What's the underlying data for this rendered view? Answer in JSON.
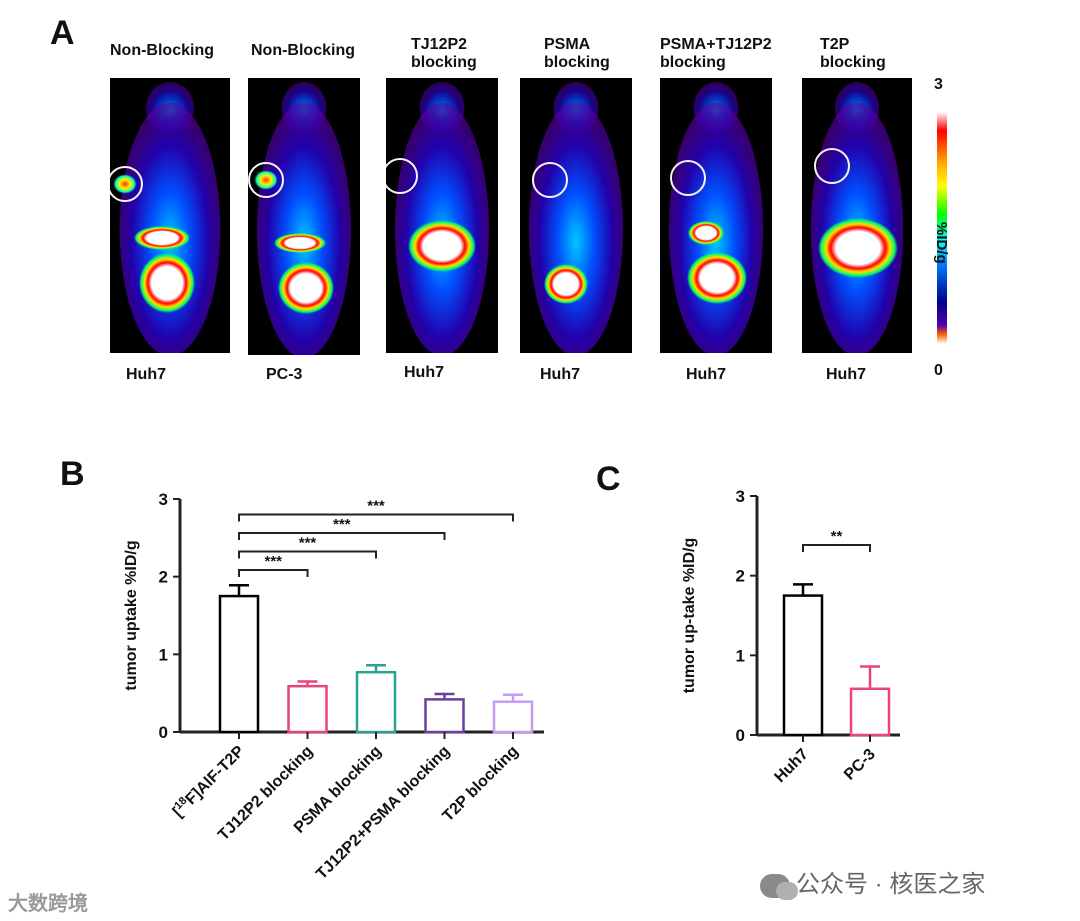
{
  "panelA": {
    "letter": "A",
    "images": [
      {
        "title": "Non-Blocking",
        "label": "Huh7"
      },
      {
        "title": "Non-Blocking",
        "label": "PC-3"
      },
      {
        "title": "TJ12P2\nblocking",
        "label": "Huh7"
      },
      {
        "title": "PSMA\nblocking",
        "label": "Huh7"
      },
      {
        "title": "PSMA+TJ12P2\nblocking",
        "label": "Huh7"
      },
      {
        "title": "T2P\nblocking",
        "label": "Huh7"
      }
    ],
    "scale_max": "3",
    "scale_min": "0",
    "scale_unit": "%ID/g"
  },
  "chart_data": [
    {
      "panel": "B",
      "type": "bar",
      "ylabel": "tumor uptake %ID/g",
      "ylim": [
        0,
        3
      ],
      "yticks": [
        "0",
        "1",
        "2",
        "3"
      ],
      "categories": [
        "[18F]AlF-T2P",
        "TJ12P2 blocking",
        "PSMA blocking",
        "TJ12P2+PSMA blocking",
        "T2P blocking"
      ],
      "values": [
        1.75,
        0.59,
        0.77,
        0.42,
        0.39
      ],
      "errors": [
        0.14,
        0.06,
        0.09,
        0.07,
        0.09
      ],
      "colors": [
        "#000000",
        "#e8457a",
        "#2aa198",
        "#6a3fa0",
        "#c59cf5"
      ],
      "significance": [
        {
          "from": 0,
          "to": 1,
          "label": "***"
        },
        {
          "from": 0,
          "to": 2,
          "label": "***"
        },
        {
          "from": 0,
          "to": 3,
          "label": "***"
        },
        {
          "from": 0,
          "to": 4,
          "label": "***"
        }
      ]
    },
    {
      "panel": "C",
      "type": "bar",
      "ylabel": "tumor up-take %ID/g",
      "ylim": [
        0,
        3
      ],
      "yticks": [
        "0",
        "1",
        "2",
        "3"
      ],
      "categories": [
        "Huh7",
        "PC-3"
      ],
      "values": [
        1.75,
        0.58
      ],
      "errors": [
        0.14,
        0.28
      ],
      "colors": [
        "#000000",
        "#e8457a"
      ],
      "significance": [
        {
          "from": 0,
          "to": 1,
          "label": "**"
        }
      ]
    }
  ],
  "panelB": {
    "letter": "B"
  },
  "panelC": {
    "letter": "C"
  },
  "footer": {
    "left": "大数跨境",
    "right": "公众号 · 核医之家"
  }
}
